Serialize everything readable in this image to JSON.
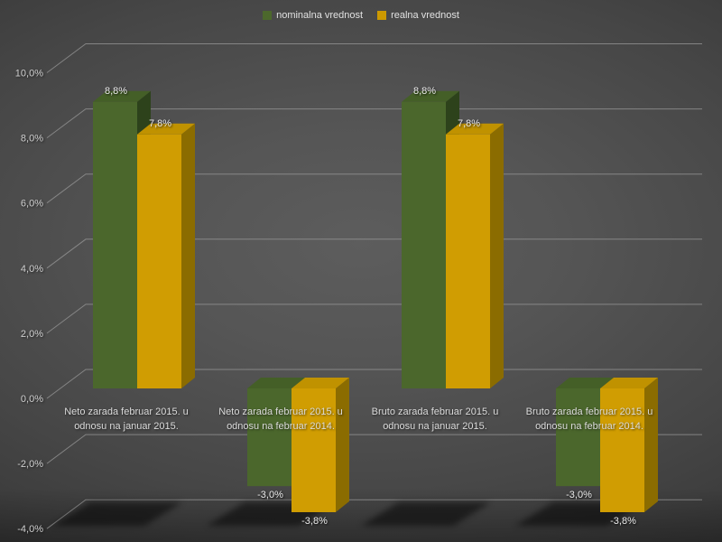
{
  "legend": {
    "items": [
      {
        "label": "nominalna vrednost",
        "color": "#4c682c"
      },
      {
        "label": "realna vrednost",
        "color": "#cc9900"
      }
    ]
  },
  "colors": {
    "background_center": "#5d5d5d",
    "background_edge": "#242424",
    "gridline": "#989898",
    "tick_text": "#d0d0d0",
    "category_text": "#dcdcdc",
    "value_text": "#ececec",
    "legend_text": "#e2e2e2",
    "shadow": "#000000"
  },
  "chart_data": {
    "type": "bar",
    "style": "3d-clustered-column",
    "title": "",
    "xlabel": "",
    "ylabel": "",
    "unit": "%",
    "grid": true,
    "legend_position": "top",
    "categories": [
      [
        "Neto zarada februar 2015. u",
        "odnosu na januar 2015."
      ],
      [
        "Neto zarada februar 2015. u",
        "odnosu na februar 2014."
      ],
      [
        "Bruto zarada februar 2015. u",
        "odnosu na januar 2015."
      ],
      [
        "Bruto zarada februar 2015. u",
        "odnosu na februar 2014."
      ]
    ],
    "series": [
      {
        "name": "nominalna vrednost",
        "values": [
          8.8,
          -3.0,
          8.8,
          -3.0
        ],
        "data_labels": [
          "8,8%",
          "-3,0%",
          "8,8%",
          "-3,0%"
        ],
        "colors": {
          "front": "#4b672c",
          "top": "#445f27",
          "side": "#2d421b"
        }
      },
      {
        "name": "realna vrednost",
        "values": [
          7.8,
          -3.8,
          7.8,
          -3.8
        ],
        "data_labels": [
          "7,8%",
          "-3,8%",
          "7,8%",
          "-3,8%"
        ],
        "colors": {
          "front": "#d09d02",
          "top": "#c09200",
          "side": "#8b6c00"
        }
      }
    ],
    "y_axis": {
      "min": -4,
      "max": 10,
      "step": 2,
      "ticks": [
        {
          "v": 10,
          "label": "10,0%"
        },
        {
          "v": 8,
          "label": "8,0%"
        },
        {
          "v": 6,
          "label": "6,0%"
        },
        {
          "v": 4,
          "label": "4,0%"
        },
        {
          "v": 2,
          "label": "2,0%"
        },
        {
          "v": 0,
          "label": "0,0%"
        },
        {
          "v": -2,
          "label": "-2,0%"
        },
        {
          "v": -4,
          "label": "-4,0%"
        }
      ]
    }
  }
}
